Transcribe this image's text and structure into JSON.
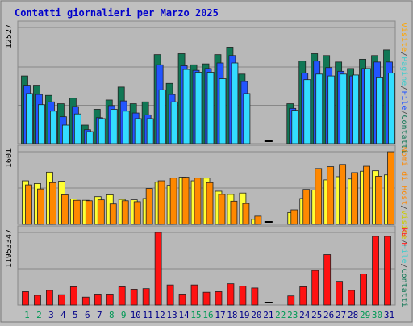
{
  "chart_data": [
    {
      "type": "bar",
      "panel": "top",
      "title": "Contatti giornalieri per Marzo 2025",
      "ytick_label": "12527",
      "ylim": [
        0,
        12527
      ],
      "categories": [
        "1",
        "2",
        "3",
        "4",
        "5",
        "6",
        "7",
        "8",
        "9",
        "10",
        "11",
        "12",
        "13",
        "14",
        "15",
        "16",
        "17",
        "18",
        "19",
        "20",
        "21",
        "22",
        "23",
        "24",
        "25",
        "26",
        "27",
        "28",
        "29",
        "30",
        "31"
      ],
      "weekend_days": [
        "1",
        "2",
        "8",
        "9",
        "15",
        "16",
        "22",
        "23",
        "29",
        "30"
      ],
      "legend_right": [
        {
          "text": "Visite",
          "color": "#ffa500"
        },
        {
          "text": "/",
          "color": "#444444"
        },
        {
          "text": "Pagine",
          "color": "#44cccc"
        },
        {
          "text": "/",
          "color": "#444444"
        },
        {
          "text": "File",
          "color": "#2255ff"
        },
        {
          "text": "/",
          "color": "#444444"
        },
        {
          "text": "Contatti",
          "color": "#117755"
        }
      ],
      "series": [
        {
          "name": "Contatti",
          "color": "#117755",
          "values": [
            7300,
            6300,
            5200,
            4300,
            4900,
            2000,
            3700,
            4700,
            6100,
            4300,
            4500,
            9600,
            6500,
            9700,
            8500,
            8600,
            9600,
            10400,
            7500,
            0,
            0,
            0,
            4300,
            8900,
            9700,
            9500,
            8800,
            8100,
            9100,
            9500,
            10100
          ]
        },
        {
          "name": "File",
          "color": "#2255ff",
          "values": [
            6300,
            5300,
            4500,
            2900,
            4000,
            1500,
            2800,
            4100,
            4600,
            3300,
            3100,
            8500,
            5300,
            8400,
            7900,
            8100,
            8700,
            9500,
            6700,
            0,
            0,
            0,
            3800,
            7600,
            8900,
            8200,
            7800,
            7300,
            8100,
            8800,
            8800
          ]
        },
        {
          "name": "Pagine",
          "color": "#33ddff",
          "values": [
            5400,
            4200,
            3500,
            2000,
            3200,
            1300,
            2700,
            3700,
            3500,
            2700,
            2700,
            5800,
            4500,
            8000,
            7700,
            7700,
            7000,
            8700,
            5400,
            0,
            0,
            0,
            3600,
            6900,
            7500,
            7300,
            7500,
            7400,
            8100,
            7100,
            7600
          ]
        }
      ]
    },
    {
      "type": "bar",
      "panel": "middle",
      "ytick_label": "1601",
      "ylim": [
        0,
        1601
      ],
      "categories": [
        "1",
        "2",
        "3",
        "4",
        "5",
        "6",
        "7",
        "8",
        "9",
        "10",
        "11",
        "12",
        "13",
        "14",
        "15",
        "16",
        "17",
        "18",
        "19",
        "20",
        "21",
        "22",
        "23",
        "24",
        "25",
        "26",
        "27",
        "28",
        "29",
        "30",
        "31"
      ],
      "legend_right": [
        {
          "text": "Nomi di Host",
          "color": "#ff8800"
        },
        {
          "text": "/",
          "color": "#444444"
        },
        {
          "text": "Visite",
          "color": "#cccc00"
        },
        {
          "text": "/",
          "color": "#444444"
        },
        {
          "text": "File",
          "color": "#44cccc"
        },
        {
          "text": "/",
          "color": "#444444"
        },
        {
          "text": "Contatti",
          "color": "#117755"
        }
      ],
      "series": [
        {
          "name": "Visite",
          "color": "#ffff33",
          "values": [
            960,
            900,
            1150,
            950,
            560,
            530,
            610,
            650,
            550,
            540,
            570,
            930,
            860,
            1040,
            960,
            1020,
            730,
            660,
            690,
            110,
            0,
            0,
            260,
            570,
            760,
            980,
            1050,
            1000,
            1170,
            1180,
            1090
          ]
        },
        {
          "name": "Nomi di Host",
          "color": "#ff8800",
          "values": [
            870,
            780,
            920,
            650,
            530,
            520,
            540,
            450,
            520,
            500,
            790,
            960,
            1020,
            1040,
            1020,
            920,
            660,
            510,
            460,
            180,
            0,
            0,
            320,
            770,
            1230,
            1270,
            1320,
            1140,
            1280,
            1060,
            1600
          ]
        }
      ]
    },
    {
      "type": "bar",
      "panel": "bottom",
      "ytick_label": "11953347",
      "ylim": [
        0,
        11953347
      ],
      "categories": [
        "1",
        "2",
        "3",
        "4",
        "5",
        "6",
        "7",
        "8",
        "9",
        "10",
        "11",
        "12",
        "13",
        "14",
        "15",
        "16",
        "17",
        "18",
        "19",
        "20",
        "21",
        "22",
        "23",
        "24",
        "25",
        "26",
        "27",
        "28",
        "29",
        "30",
        "31"
      ],
      "legend_right": [
        {
          "text": "kB F",
          "color": "#ff2222"
        }
      ],
      "series": [
        {
          "name": "kB F",
          "color": "#ff1111",
          "values": [
            2200,
            1600,
            2400,
            1700,
            3000,
            1300,
            1800,
            1800,
            3000,
            2600,
            2700,
            11953,
            3300,
            1800,
            3300,
            2100,
            2200,
            3500,
            3100,
            2800,
            0,
            0,
            1500,
            3000,
            5700,
            8300,
            3900,
            2400,
            5100,
            11300,
            11300
          ]
        }
      ]
    }
  ]
}
